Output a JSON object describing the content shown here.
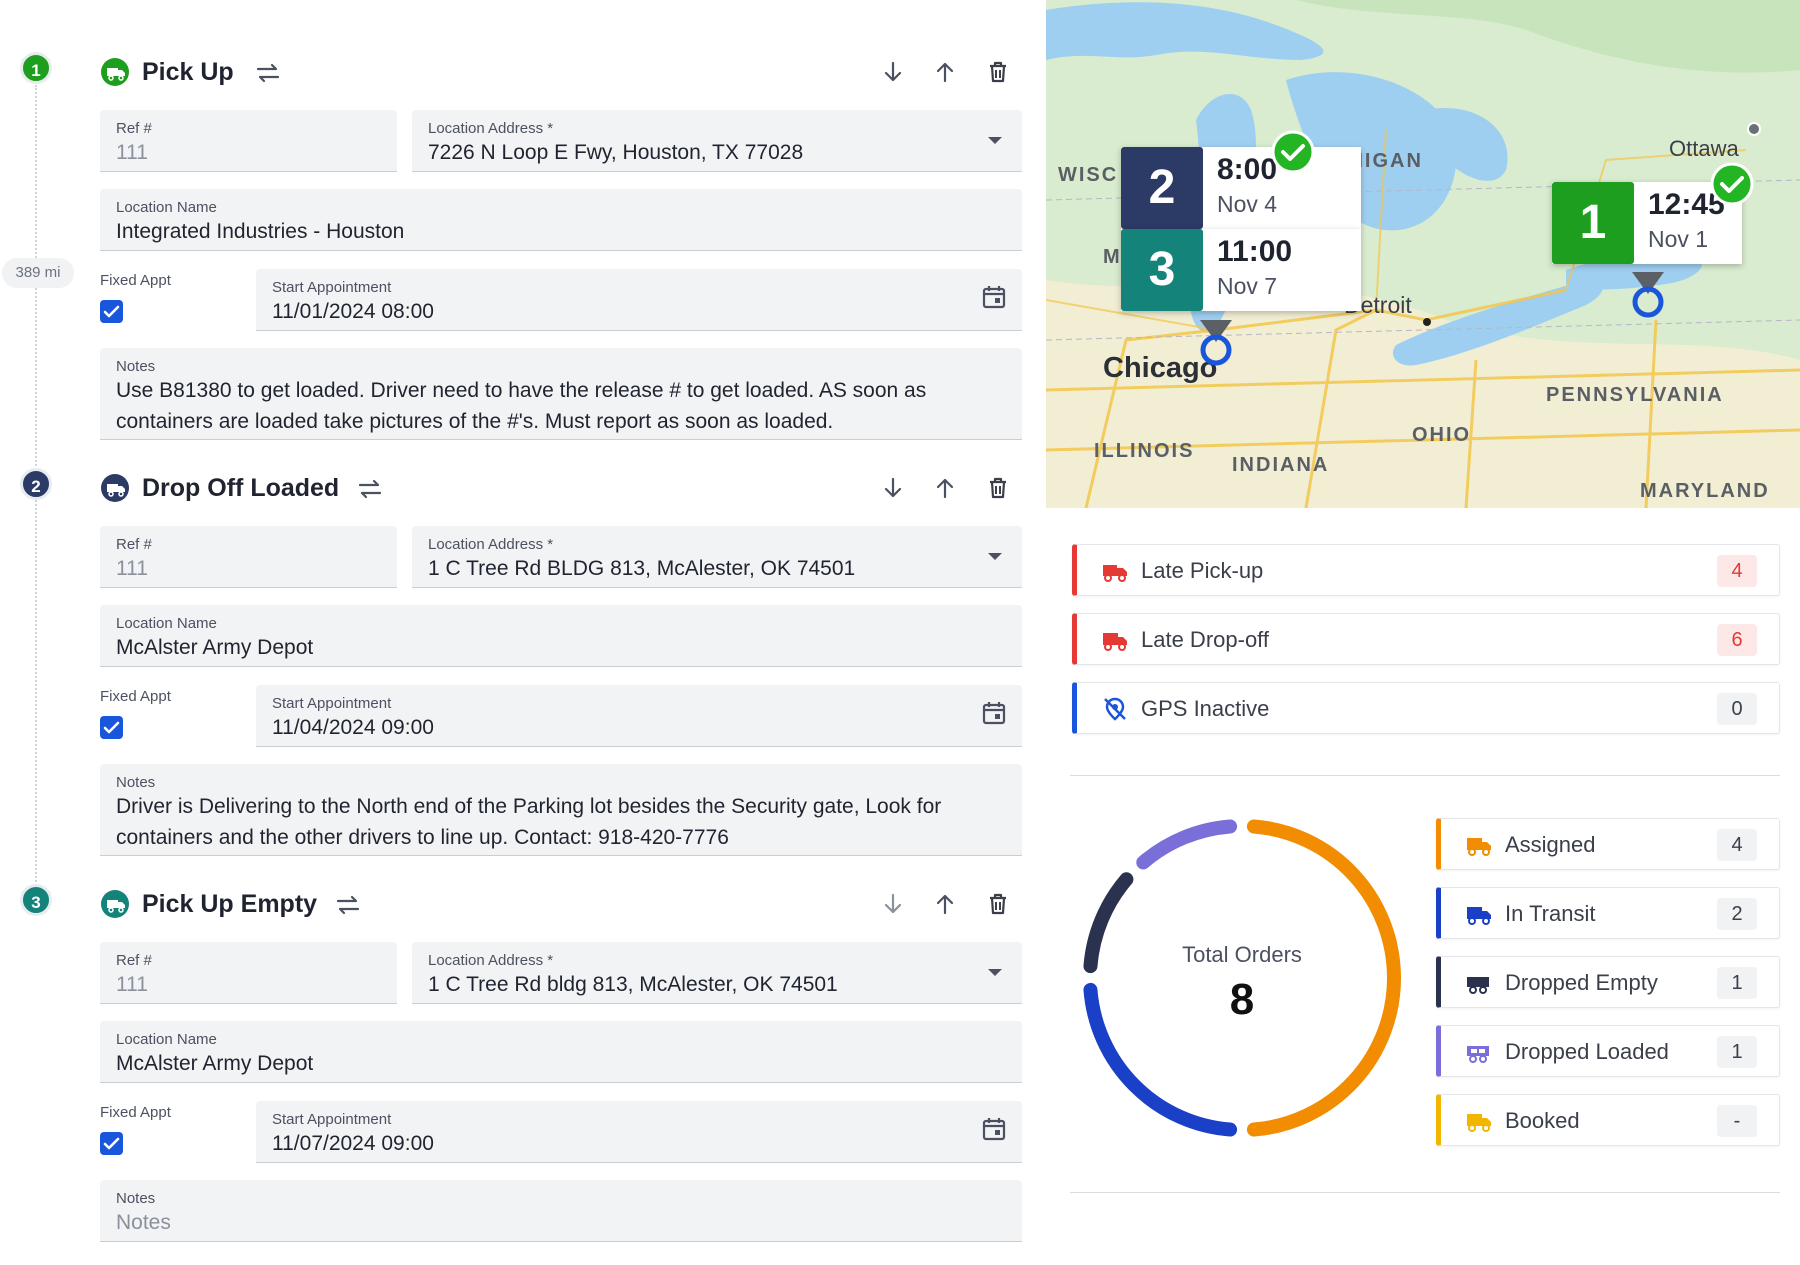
{
  "distance": "389 mi",
  "common": {
    "ref_label": "Ref #",
    "address_label": "Location Address *",
    "name_label": "Location Name",
    "fixed_label": "Fixed Appt",
    "start_label": "Start Appointment",
    "notes_label": "Notes"
  },
  "stops": [
    {
      "number": "1",
      "color": "#1e9e1e",
      "title": "Pick Up",
      "ref": "111",
      "address": "7226 N Loop E Fwy, Houston, TX 77028",
      "location_name": "Integrated Industries - Houston",
      "fixed_appt": true,
      "start": "11/01/2024 08:00",
      "notes": "Use B81380 to get loaded. Driver need to have the release # to get loaded. AS soon as containers are loaded take pictures of the #'s. Must report as soon as loaded."
    },
    {
      "number": "2",
      "color": "#2c3a66",
      "title": "Drop Off Loaded",
      "ref": "111",
      "address": "1 C Tree Rd BLDG 813, McAlester, OK 74501",
      "location_name": "McAlster Army Depot",
      "fixed_appt": true,
      "start": "11/04/2024 09:00",
      "notes": "Driver is Delivering to the North end of the Parking lot besides the Security gate, Look for containers and the other drivers to line up. Contact: 918-420-7776"
    },
    {
      "number": "3",
      "color": "#14837a",
      "title": "Pick Up Empty",
      "ref": "111",
      "address": "1 C Tree Rd bldg 813, McAlester, OK 74501",
      "location_name": "McAlster Army Depot",
      "fixed_appt": true,
      "start": "11/07/2024 09:00",
      "notes_placeholder": "Notes"
    }
  ],
  "map": {
    "labels": {
      "wisc": "WISC",
      "michigan": "CHIGAN",
      "m": "M",
      "ottawa": "Ottawa",
      "detroit": "Detroit",
      "chicago": "Chicago",
      "pennsylvania": "PENNSYLVANIA",
      "ohio": "OHIO",
      "illinois": "ILLINOIS",
      "indiana": "INDIANA",
      "maryland": "MARYLAND"
    },
    "markers": [
      {
        "number": "2",
        "time": "8:00",
        "date": "Nov 4",
        "color": "#2c3a66"
      },
      {
        "number": "3",
        "time": "11:00",
        "date": "Nov 7",
        "color": "#14837a"
      },
      {
        "number": "1",
        "time": "12:45",
        "date": "Nov 1",
        "color": "#1e9e1e"
      }
    ]
  },
  "alerts": [
    {
      "label": "Late Pick-up",
      "count": "4",
      "accent": "#e53935",
      "icon": "late-pickup-truck-icon"
    },
    {
      "label": "Late Drop-off",
      "count": "6",
      "accent": "#e53935",
      "icon": "late-dropoff-truck-icon"
    },
    {
      "label": "GPS Inactive",
      "count": "0",
      "accent": "#1a56db",
      "icon": "gps-off-icon"
    }
  ],
  "orders": {
    "total_label": "Total Orders",
    "total": "8",
    "statuses": [
      {
        "label": "Assigned",
        "count": "4",
        "value": 4,
        "color": "#f28c00",
        "icon": "assigned-truck-icon"
      },
      {
        "label": "In Transit",
        "count": "2",
        "value": 2,
        "color": "#1a40c8",
        "icon": "in-transit-truck-icon"
      },
      {
        "label": "Dropped Empty",
        "count": "1",
        "value": 1,
        "color": "#2b3250",
        "icon": "dropped-empty-trailer-icon"
      },
      {
        "label": "Dropped Loaded",
        "count": "1",
        "value": 1,
        "color": "#7a6fd8",
        "icon": "dropped-loaded-trailer-icon"
      },
      {
        "label": "Booked",
        "count": "-",
        "value": 0,
        "color": "#f2b600",
        "icon": "booked-truck-icon"
      }
    ]
  }
}
